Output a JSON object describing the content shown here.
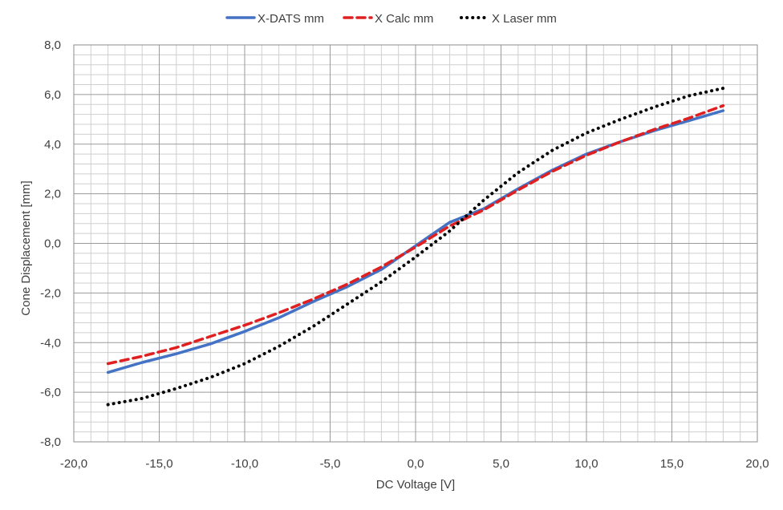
{
  "chart_data": {
    "type": "line",
    "title": "",
    "xlabel": "DC Voltage [V]",
    "ylabel": "Cone Displacement  [mm]",
    "xlim": [
      -20,
      20
    ],
    "ylim": [
      -8,
      8
    ],
    "x_ticks": [
      -20,
      -15,
      -10,
      -5,
      0,
      5,
      10,
      15,
      20
    ],
    "y_ticks": [
      -8,
      -6,
      -4,
      -2,
      0,
      2,
      4,
      6,
      8
    ],
    "x_tick_labels": [
      "-20,0",
      "-15,0",
      "-10,0",
      "-5,0",
      "0,0",
      "5,0",
      "10,0",
      "15,0",
      "20,0"
    ],
    "y_tick_labels": [
      "-8,0",
      "-6,0",
      "-4,0",
      "-2,0",
      "0,0",
      "2,0",
      "4,0",
      "6,0",
      "8,0"
    ],
    "grid": true,
    "legend_position": "top",
    "series": [
      {
        "name": "X-DATS mm",
        "color": "#4472C4",
        "style": "solid",
        "x": [
          -18,
          -16,
          -14,
          -12,
          -10,
          -8,
          -6,
          -4,
          -2,
          0,
          2,
          4,
          6,
          8,
          10,
          12,
          14,
          16,
          18
        ],
        "y": [
          -5.2,
          -4.8,
          -4.45,
          -4.05,
          -3.55,
          -3.0,
          -2.35,
          -1.75,
          -1.05,
          -0.1,
          0.85,
          1.4,
          2.2,
          2.95,
          3.6,
          4.1,
          4.55,
          4.95,
          5.35
        ]
      },
      {
        "name": "X Calc mm",
        "color": "#E02020",
        "style": "dashed",
        "x": [
          -18,
          -16,
          -14,
          -12,
          -10,
          -8,
          -6,
          -4,
          -2,
          0,
          2,
          4,
          6,
          8,
          10,
          12,
          14,
          16,
          18
        ],
        "y": [
          -4.85,
          -4.55,
          -4.2,
          -3.75,
          -3.3,
          -2.8,
          -2.25,
          -1.65,
          -0.95,
          -0.15,
          0.7,
          1.35,
          2.15,
          2.9,
          3.55,
          4.1,
          4.6,
          5.05,
          5.55
        ]
      },
      {
        "name": "X Laser mm",
        "color": "#000000",
        "style": "dotted",
        "x": [
          -18,
          -16,
          -14,
          -12,
          -10,
          -8,
          -6,
          -4,
          -2,
          0,
          2,
          4,
          6,
          8,
          10,
          12,
          14,
          16,
          18
        ],
        "y": [
          -6.5,
          -6.25,
          -5.85,
          -5.4,
          -4.85,
          -4.15,
          -3.35,
          -2.45,
          -1.55,
          -0.55,
          0.5,
          1.75,
          2.85,
          3.75,
          4.45,
          5.0,
          5.5,
          5.95,
          6.25
        ]
      }
    ]
  }
}
